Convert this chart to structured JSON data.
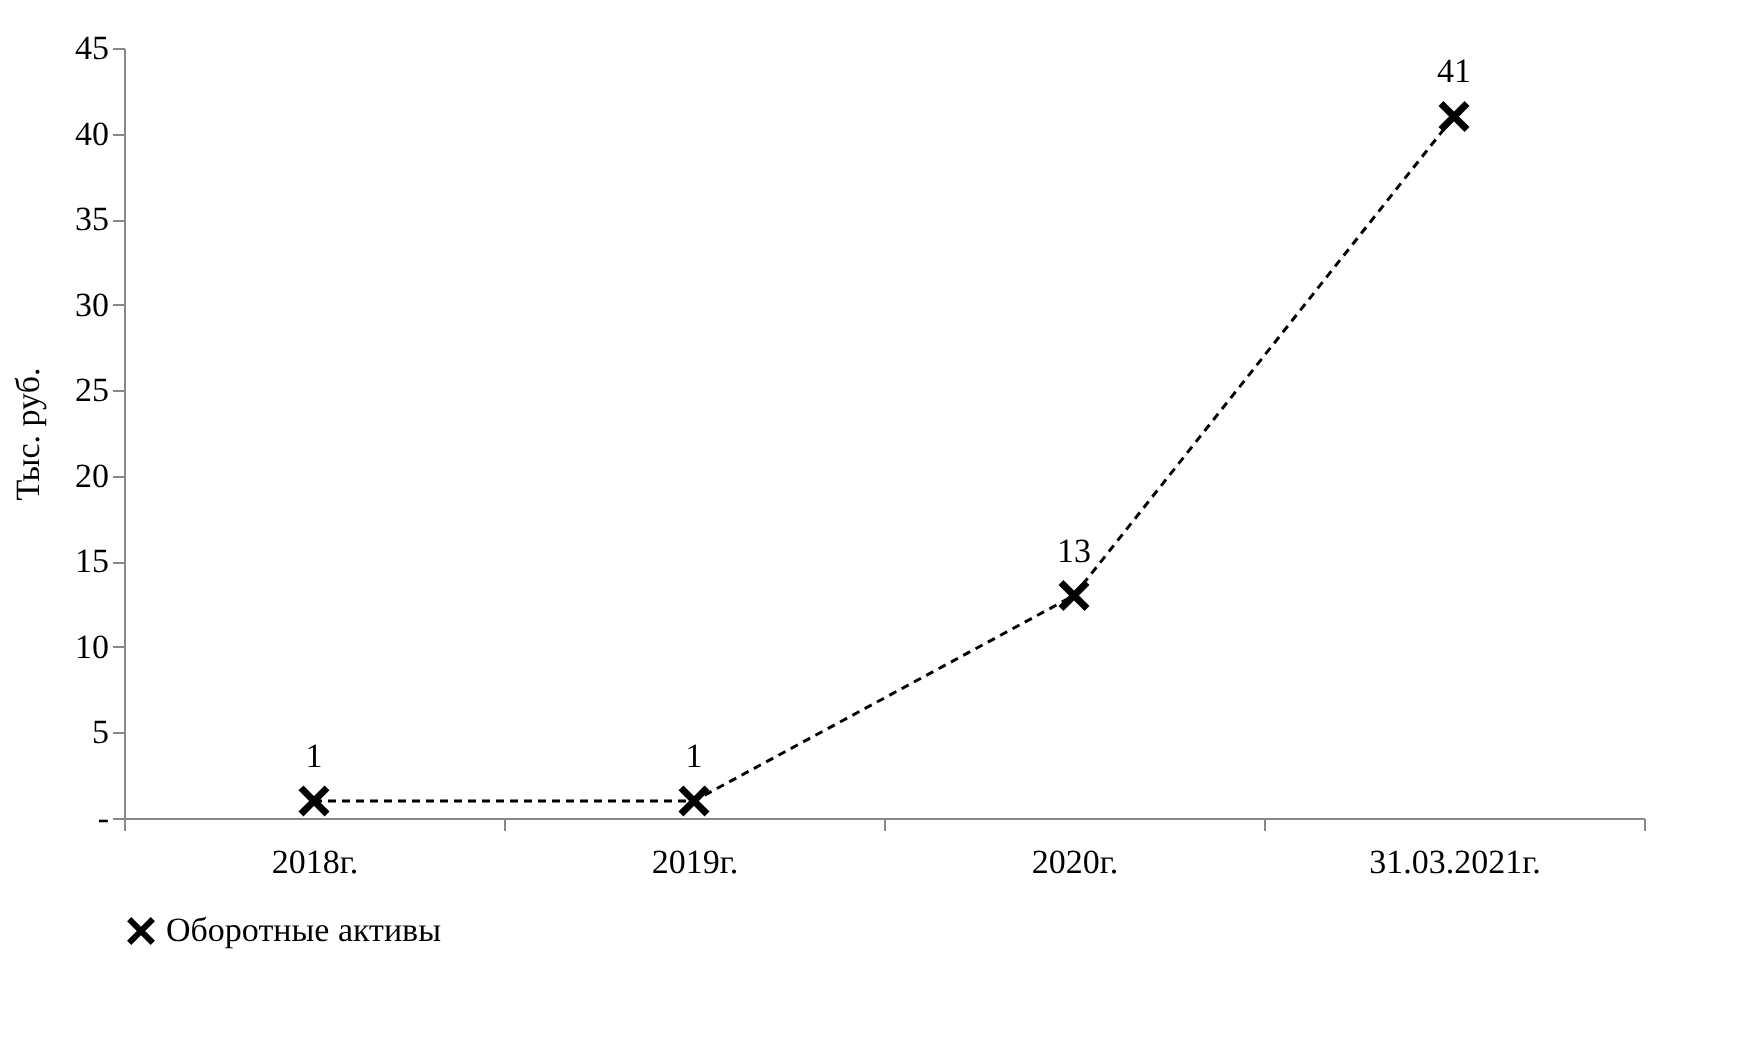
{
  "chart_data": {
    "type": "line",
    "ylabel": "Тыс. руб.",
    "categories": [
      "2018г.",
      "2019г.",
      "2020г.",
      "31.03.2021г."
    ],
    "series": [
      {
        "name": "Оборотные активы",
        "color": "#000000",
        "values": [
          1,
          1,
          13,
          41
        ]
      }
    ],
    "ylim": [
      0,
      45
    ],
    "yticks": [
      {
        "value": 0,
        "label": "-"
      },
      5,
      10,
      15,
      20,
      25,
      30,
      35,
      40,
      45
    ],
    "grid": false,
    "legend": "bottom",
    "marker": "cross",
    "line_style": "dashed",
    "data_labels": true
  }
}
